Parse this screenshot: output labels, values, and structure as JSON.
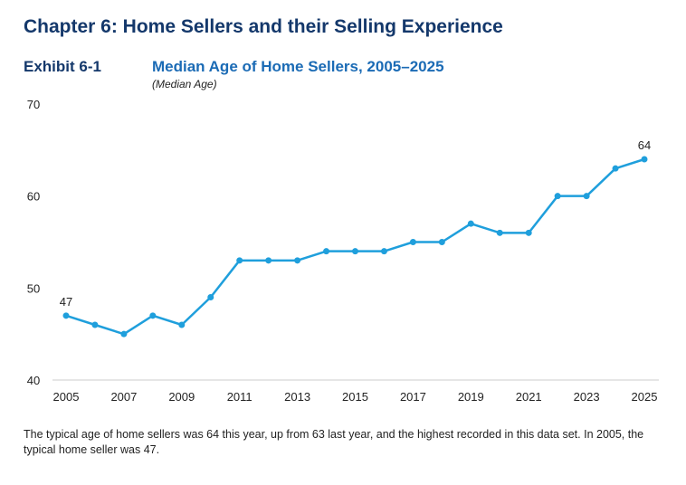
{
  "header": {
    "chapter": "Chapter 6: Home Sellers and their Selling Experience",
    "exhibit": "Exhibit 6-1",
    "title": "Median Age of Home Sellers, 2005–2025",
    "subtitle": "(Median Age)"
  },
  "chart_data": {
    "type": "line",
    "title": "Median Age of Home Sellers, 2005–2025",
    "ylabel": "(Median Age)",
    "xlabel": "",
    "x": [
      2005,
      2006,
      2007,
      2008,
      2009,
      2010,
      2011,
      2012,
      2013,
      2014,
      2015,
      2016,
      2017,
      2018,
      2019,
      2020,
      2021,
      2022,
      2023,
      2024,
      2025
    ],
    "series": [
      {
        "name": "Median Age",
        "values": [
          47,
          46,
          45,
          47,
          46,
          49,
          53,
          53,
          53,
          54,
          54,
          54,
          55,
          55,
          57,
          56,
          56,
          60,
          60,
          63,
          64
        ],
        "color": "#1f9fdc"
      }
    ],
    "ylim": [
      40,
      70
    ],
    "yticks": [
      "40",
      "50",
      "60",
      "70"
    ],
    "xticks": [
      "2005",
      "2007",
      "2009",
      "2011",
      "2013",
      "2015",
      "2017",
      "2019",
      "2021",
      "2023",
      "2025"
    ],
    "data_labels": [
      {
        "x": 2005,
        "text": "47"
      },
      {
        "x": 2025,
        "text": "64"
      }
    ],
    "grid": false,
    "legend": "none"
  },
  "caption": "The typical age of home sellers was 64 this year, up from 63 last year, and the highest recorded in this data set. In 2005, the typical home seller was 47."
}
